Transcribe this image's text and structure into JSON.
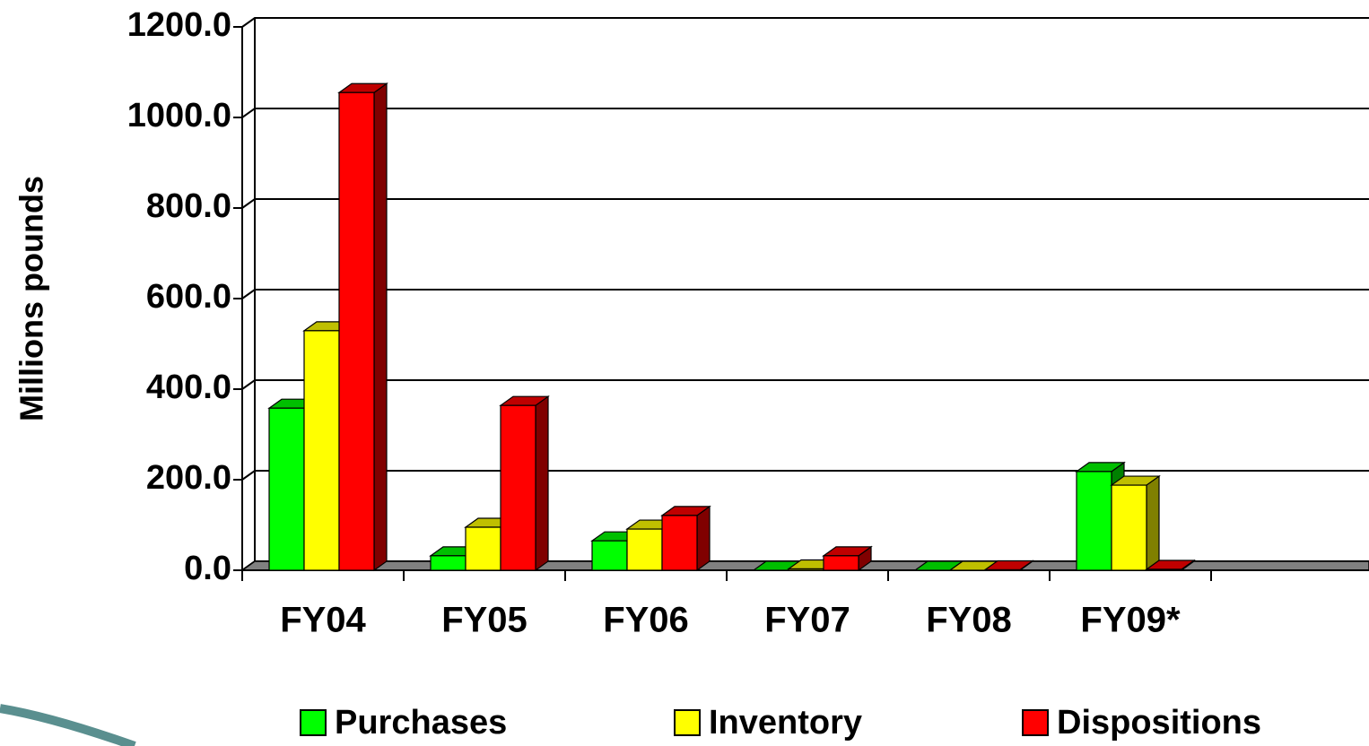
{
  "chart_data": {
    "type": "bar3d",
    "y_label": "Millions pounds",
    "categories": [
      "FY04",
      "FY05",
      "FY06",
      "FY07",
      "FY08",
      "FY09*",
      null
    ],
    "series": [
      {
        "name": "Purchases",
        "color": "#00ff00",
        "values": [
          358,
          32,
          65,
          0,
          0,
          218,
          null
        ]
      },
      {
        "name": "Inventory",
        "color": "#ffff00",
        "values": [
          529,
          95,
          91,
          3,
          0,
          188,
          null
        ]
      },
      {
        "name": "Dispositions",
        "color": "#ff0000",
        "values": [
          1055,
          364,
          121,
          32,
          1,
          2,
          null
        ]
      }
    ],
    "ylim": [
      0,
      1200
    ],
    "yticks": [
      {
        "value": 0,
        "label": "0.0"
      },
      {
        "value": 200,
        "label": "200.0"
      },
      {
        "value": 400,
        "label": "400.0"
      },
      {
        "value": 600,
        "label": "600.0"
      },
      {
        "value": 800,
        "label": "800.0"
      },
      {
        "value": 1000,
        "label": "1000.0"
      },
      {
        "value": 1200,
        "label": "1200.0"
      }
    ],
    "grid": true,
    "legend": "bottom"
  }
}
